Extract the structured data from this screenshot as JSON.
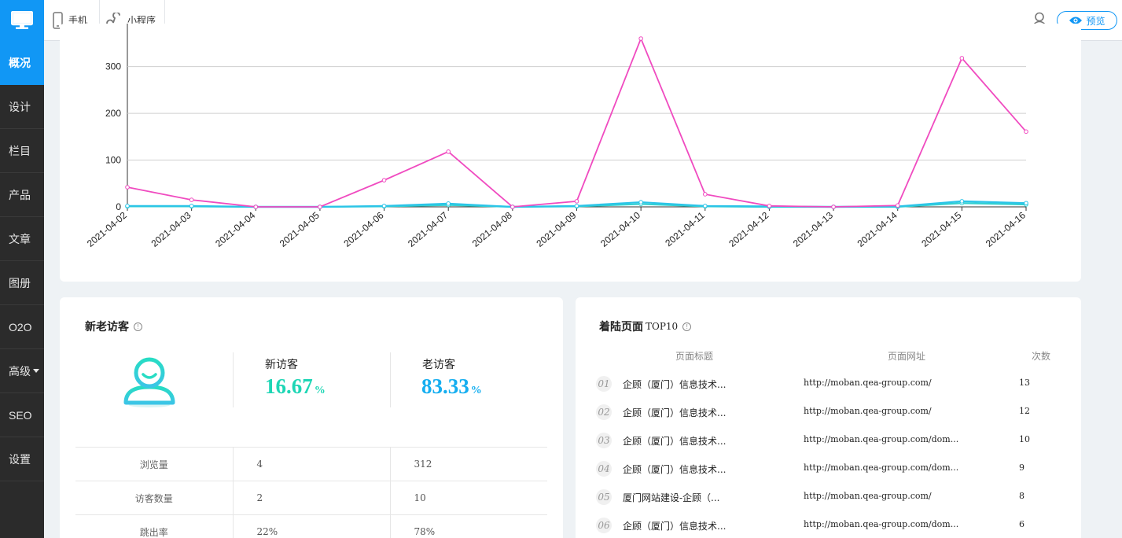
{
  "topbar": {
    "logo_icon": "desktop-icon",
    "tabs": [
      {
        "label": "手机",
        "icon": "mobile-phone-icon"
      },
      {
        "label": "小程序",
        "icon": "mini-program-icon"
      }
    ],
    "user_icon": "user-icon",
    "preview_label": "预览",
    "preview_icon": "eye-icon",
    "accent": "#1197f5"
  },
  "sidebar": {
    "items": [
      {
        "label": "概况",
        "active": true
      },
      {
        "label": "设计"
      },
      {
        "label": "栏目"
      },
      {
        "label": "产品"
      },
      {
        "label": "文章"
      },
      {
        "label": "图册"
      },
      {
        "label": "O2O"
      },
      {
        "label": "高级",
        "dropdown": true
      },
      {
        "label": "SEO"
      },
      {
        "label": "设置"
      }
    ]
  },
  "chart_data": {
    "type": "line",
    "categories": [
      "2021-04-02",
      "2021-04-03",
      "2021-04-04",
      "2021-04-05",
      "2021-04-06",
      "2021-04-07",
      "2021-04-08",
      "2021-04-09",
      "2021-04-10",
      "2021-04-11",
      "2021-04-12",
      "2021-04-13",
      "2021-04-14",
      "2021-04-15",
      "2021-04-16"
    ],
    "y_ticks": [
      "0",
      "100",
      "200",
      "300"
    ],
    "ylim": [
      0,
      360
    ],
    "grid": true,
    "series": [
      {
        "color": "#f04bc0",
        "values": [
          42,
          15,
          0,
          0,
          57,
          118,
          0,
          12,
          360,
          27,
          2,
          0,
          3,
          318,
          161
        ]
      },
      {
        "color": "#2bc4e8",
        "values": [
          2,
          2,
          0,
          0,
          2,
          7,
          0,
          2,
          10,
          2,
          1,
          0,
          1,
          12,
          8
        ]
      },
      {
        "color": "#33d1d1",
        "values": [
          1,
          1,
          0,
          0,
          1,
          4,
          0,
          1,
          6,
          1,
          0,
          0,
          0,
          8,
          5
        ]
      }
    ]
  },
  "visitors": {
    "title": "新老访客",
    "info_icon": "info-icon",
    "avatar_icon": "user-avatar-icon",
    "new_label": "新访客",
    "new_pct": "16.67",
    "new_color": "#1ed6b5",
    "old_label": "老访客",
    "old_pct": "83.33",
    "old_color": "#15aef0",
    "pct_sign": "%",
    "rows": [
      {
        "label": "浏览量",
        "new": "4",
        "old": "312"
      },
      {
        "label": "访客数量",
        "new": "2",
        "old": "10"
      },
      {
        "label": "跳出率",
        "new": "22%",
        "old": "78%"
      }
    ]
  },
  "landing": {
    "title": "着陆页面",
    "title_suffix": "TOP10",
    "info_icon": "info-icon",
    "headers": {
      "title": "页面标题",
      "url": "页面网址",
      "count": "次数"
    },
    "rows": [
      {
        "num": "01",
        "title": "企顾（厦门）信息技术...",
        "url": "http://moban.qea-group.com/",
        "count": "13"
      },
      {
        "num": "02",
        "title": "企顾（厦门）信息技术...",
        "url": "http://moban.qea-group.com/",
        "count": "12"
      },
      {
        "num": "03",
        "title": "企顾（厦门）信息技术...",
        "url": "http://moban.qea-group.com/dom...",
        "count": "10"
      },
      {
        "num": "04",
        "title": "企顾（厦门）信息技术...",
        "url": "http://moban.qea-group.com/dom...",
        "count": "9"
      },
      {
        "num": "05",
        "title": "厦门网站建设-企顾（...",
        "url": "http://moban.qea-group.com/",
        "count": "8"
      },
      {
        "num": "06",
        "title": "企顾（厦门）信息技术...",
        "url": "http://moban.qea-group.com/dom...",
        "count": "6"
      }
    ]
  }
}
